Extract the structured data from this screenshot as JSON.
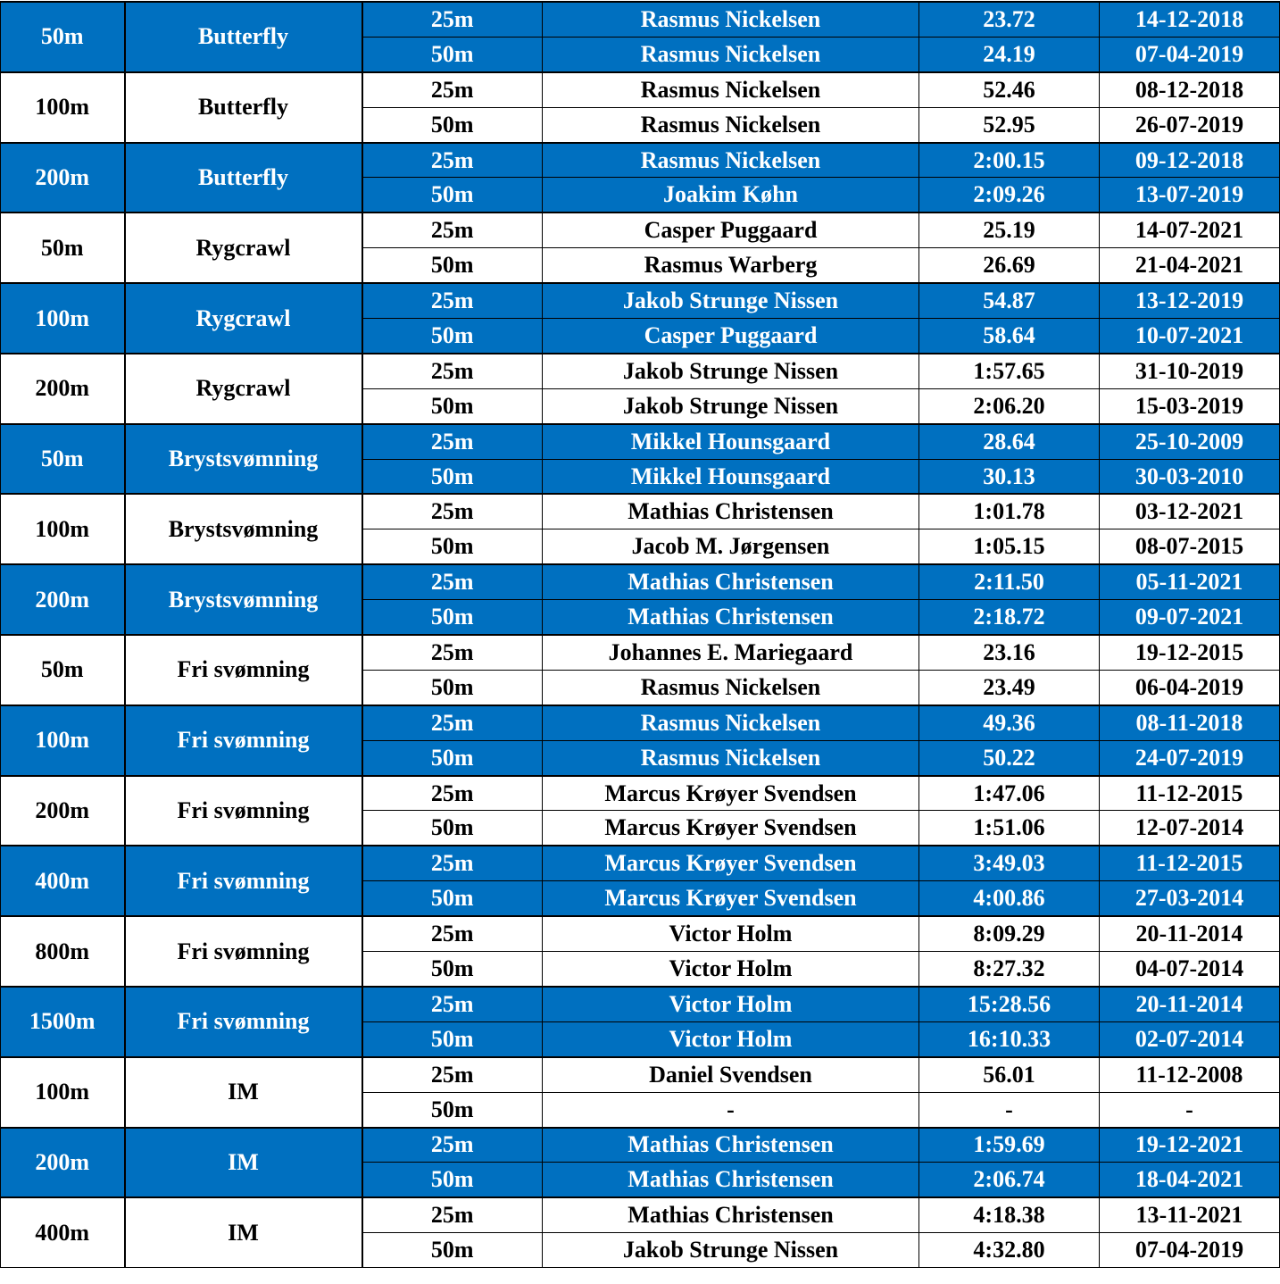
{
  "table": {
    "groups": [
      {
        "distance": "50m",
        "stroke": "Butterfly",
        "rows": [
          [
            "25m",
            "Rasmus Nickelsen",
            "23.72",
            "14-12-2018"
          ],
          [
            "50m",
            "Rasmus Nickelsen",
            "24.19",
            "07-04-2019"
          ]
        ]
      },
      {
        "distance": "100m",
        "stroke": "Butterfly",
        "rows": [
          [
            "25m",
            "Rasmus Nickelsen",
            "52.46",
            "08-12-2018"
          ],
          [
            "50m",
            "Rasmus Nickelsen",
            "52.95",
            "26-07-2019"
          ]
        ]
      },
      {
        "distance": "200m",
        "stroke": "Butterfly",
        "rows": [
          [
            "25m",
            "Rasmus Nickelsen",
            "2:00.15",
            "09-12-2018"
          ],
          [
            "50m",
            "Joakim Køhn",
            "2:09.26",
            "13-07-2019"
          ]
        ]
      },
      {
        "distance": "50m",
        "stroke": "Rygcrawl",
        "rows": [
          [
            "25m",
            "Casper Puggaard",
            "25.19",
            "14-07-2021"
          ],
          [
            "50m",
            "Rasmus Warberg",
            "26.69",
            "21-04-2021"
          ]
        ]
      },
      {
        "distance": "100m",
        "stroke": "Rygcrawl",
        "rows": [
          [
            "25m",
            "Jakob Strunge Nissen",
            "54.87",
            "13-12-2019"
          ],
          [
            "50m",
            "Casper Puggaard",
            "58.64",
            "10-07-2021"
          ]
        ]
      },
      {
        "distance": "200m",
        "stroke": "Rygcrawl",
        "rows": [
          [
            "25m",
            "Jakob Strunge Nissen",
            "1:57.65",
            "31-10-2019"
          ],
          [
            "50m",
            "Jakob Strunge Nissen",
            "2:06.20",
            "15-03-2019"
          ]
        ]
      },
      {
        "distance": "50m",
        "stroke": "Brystsvømning",
        "rows": [
          [
            "25m",
            "Mikkel Hounsgaard",
            "28.64",
            "25-10-2009"
          ],
          [
            "50m",
            "Mikkel Hounsgaard",
            "30.13",
            "30-03-2010"
          ]
        ]
      },
      {
        "distance": "100m",
        "stroke": "Brystsvømning",
        "rows": [
          [
            "25m",
            "Mathias Christensen",
            "1:01.78",
            "03-12-2021"
          ],
          [
            "50m",
            "Jacob M. Jørgensen",
            "1:05.15",
            "08-07-2015"
          ]
        ]
      },
      {
        "distance": "200m",
        "stroke": "Brystsvømning",
        "rows": [
          [
            "25m",
            "Mathias Christensen",
            "2:11.50",
            "05-11-2021"
          ],
          [
            "50m",
            "Mathias Christensen",
            "2:18.72",
            "09-07-2021"
          ]
        ]
      },
      {
        "distance": "50m",
        "stroke": "Fri svømning",
        "rows": [
          [
            "25m",
            "Johannes E. Mariegaard",
            "23.16",
            "19-12-2015"
          ],
          [
            "50m",
            "Rasmus Nickelsen",
            "23.49",
            "06-04-2019"
          ]
        ]
      },
      {
        "distance": "100m",
        "stroke": "Fri svømning",
        "rows": [
          [
            "25m",
            "Rasmus Nickelsen",
            "49.36",
            "08-11-2018"
          ],
          [
            "50m",
            "Rasmus Nickelsen",
            "50.22",
            "24-07-2019"
          ]
        ]
      },
      {
        "distance": "200m",
        "stroke": "Fri svømning",
        "rows": [
          [
            "25m",
            "Marcus Krøyer Svendsen",
            "1:47.06",
            "11-12-2015"
          ],
          [
            "50m",
            "Marcus Krøyer Svendsen",
            "1:51.06",
            "12-07-2014"
          ]
        ]
      },
      {
        "distance": "400m",
        "stroke": "Fri svømning",
        "rows": [
          [
            "25m",
            "Marcus Krøyer Svendsen",
            "3:49.03",
            "11-12-2015"
          ],
          [
            "50m",
            "Marcus Krøyer Svendsen",
            "4:00.86",
            "27-03-2014"
          ]
        ]
      },
      {
        "distance": "800m",
        "stroke": "Fri svømning",
        "rows": [
          [
            "25m",
            "Victor Holm",
            "8:09.29",
            "20-11-2014"
          ],
          [
            "50m",
            "Victor Holm",
            "8:27.32",
            "04-07-2014"
          ]
        ]
      },
      {
        "distance": "1500m",
        "stroke": "Fri svømning",
        "rows": [
          [
            "25m",
            "Victor Holm",
            "15:28.56",
            "20-11-2014"
          ],
          [
            "50m",
            "Victor Holm",
            "16:10.33",
            "02-07-2014"
          ]
        ]
      },
      {
        "distance": "100m",
        "stroke": "IM",
        "rows": [
          [
            "25m",
            "Daniel Svendsen",
            "56.01",
            "11-12-2008"
          ],
          [
            "50m",
            "-",
            "-",
            "-"
          ]
        ]
      },
      {
        "distance": "200m",
        "stroke": "IM",
        "rows": [
          [
            "25m",
            "Mathias Christensen",
            "1:59.69",
            "19-12-2021"
          ],
          [
            "50m",
            "Mathias Christensen",
            "2:06.74",
            "18-04-2021"
          ]
        ]
      },
      {
        "distance": "400m",
        "stroke": "IM",
        "rows": [
          [
            "25m",
            "Mathias Christensen",
            "4:18.38",
            "13-11-2021"
          ],
          [
            "50m",
            "Jakob Strunge Nissen",
            "4:32.80",
            "07-04-2019"
          ]
        ]
      }
    ]
  }
}
